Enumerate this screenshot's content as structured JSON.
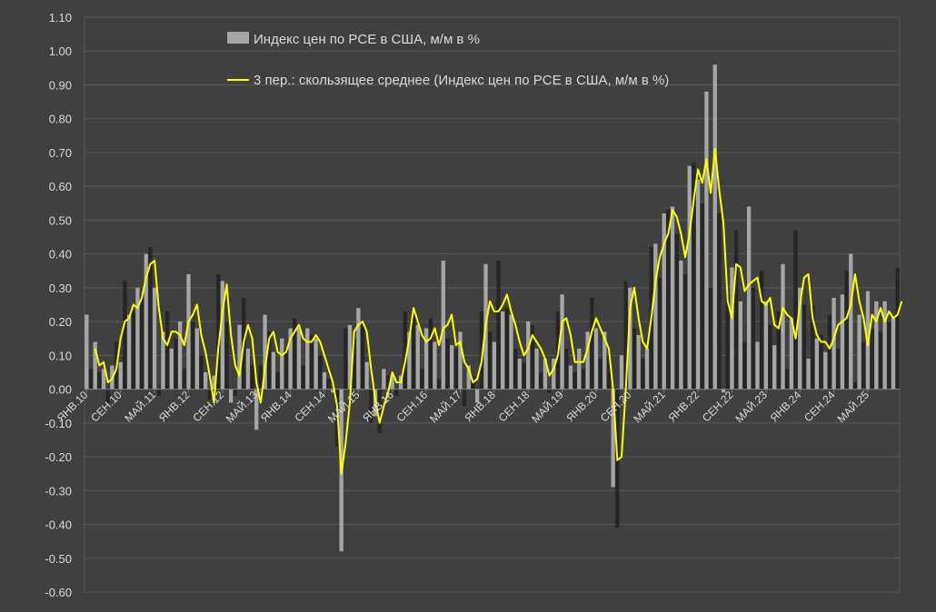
{
  "chart_data": {
    "type": "bar",
    "title": "",
    "xlabel": "",
    "ylabel": "",
    "ylim": [
      -0.6,
      1.1
    ],
    "yticks": [
      -0.6,
      -0.5,
      -0.4,
      -0.3,
      -0.2,
      -0.1,
      0,
      0.1,
      0.2,
      0.3,
      0.4,
      0.5,
      0.6,
      0.7,
      0.8,
      0.9,
      1.0,
      1.1
    ],
    "ytick_labels": [
      "-0.60",
      "-0.50",
      "-0.40",
      "-0.30",
      "-0.20",
      "-0.10",
      "0.00",
      "0.10",
      "0.20",
      "0.30",
      "0.40",
      "0.50",
      "0.60",
      "0.70",
      "0.80",
      "0.90",
      "1.00",
      "1.10"
    ],
    "xtick_labels": [
      "ЯНВ.10",
      "СЕН.10",
      "МАЙ.11",
      "ЯНВ.12",
      "СЕН.12",
      "МАЙ.13",
      "ЯНВ.14",
      "СЕН.14",
      "МАЙ.15",
      "ЯНВ.16",
      "СЕН.16",
      "МАЙ.17",
      "ЯНВ.18",
      "СЕН.18",
      "МАЙ.19",
      "ЯНВ.20",
      "СЕН.20",
      "МАЙ.21",
      "ЯНВ.22",
      "СЕН.22",
      "МАЙ.23",
      "ЯНВ.24",
      "СЕН.24",
      "МАЙ.25"
    ],
    "grid": true,
    "legend_position": "top-center",
    "colors": {
      "bars_light": "#a6a6a6",
      "bars_dark": "#262626",
      "line": "#ffff00",
      "grid": "#595959",
      "text": "#d9d9d9",
      "background": "#404040"
    },
    "series": [
      {
        "name": "Индекс цен по PCE в США, м/м в %",
        "type": "bar",
        "values": [
          0.22,
          0.06,
          0.14,
          0.05,
          0.06,
          -0.04,
          0.07,
          0.14,
          0.08,
          0.32,
          0.22,
          0.23,
          0.3,
          0.28,
          0.4,
          0.42,
          0.3,
          -0.02,
          0.17,
          0.23,
          0.12,
          0.15,
          0.2,
          0.06,
          0.34,
          0.2,
          0.18,
          0.1,
          0.05,
          -0.03,
          0.04,
          0.34,
          0.32,
          0.2,
          -0.04,
          -0.02,
          0.19,
          0.27,
          0.12,
          0.07,
          -0.12,
          0.07,
          0.22,
          0.17,
          0.11,
          0.05,
          0.15,
          0.12,
          0.18,
          0.21,
          0.18,
          0.07,
          0.18,
          0.16,
          0.15,
          0.1,
          0.05,
          0.03,
          -0.01,
          -0.17,
          -0.48,
          0.18,
          0.19,
          0.15,
          0.24,
          0.2,
          0.08,
          -0.1,
          -0.08,
          -0.13,
          0.06,
          0.04,
          0.04,
          -0.02,
          0.04,
          0.23,
          0.17,
          0.23,
          0.19,
          0.06,
          0.18,
          0.21,
          0.14,
          0.03,
          0.38,
          0.15,
          0.13,
          0.12,
          0.17,
          -0.05,
          0.07,
          0.04,
          -0.04,
          0.23,
          0.37,
          0.17,
          0.14,
          0.38,
          0.23,
          0.24,
          0.22,
          0.12,
          0.09,
          0.08,
          0.2,
          0.19,
          0.12,
          0.05,
          0.09,
          -0.01,
          0.09,
          0.23,
          0.28,
          0.12,
          0.07,
          0.05,
          0.12,
          0.06,
          0.17,
          0.27,
          0.18,
          0.09,
          0.17,
          0.1,
          -0.29,
          -0.41,
          0.1,
          0.32,
          0.3,
          0.18,
          0.16,
          0.09,
          0.12,
          0.42,
          0.43,
          0.33,
          0.52,
          0.53,
          0.54,
          0.46,
          0.38,
          0.34,
          0.66,
          0.67,
          0.62,
          0.55,
          0.88,
          0.3,
          0.96,
          0.52,
          -0.01,
          0.28,
          0.36,
          0.47,
          0.26,
          0.14,
          0.54,
          0.3,
          0.14,
          0.35,
          0.26,
          0.19,
          0.13,
          0.23,
          0.37,
          0.06,
          0.21,
          0.47,
          0.3,
          0.25,
          0.09,
          0.25,
          0.15,
          0.16,
          0.11,
          0.22,
          0.27,
          0.12,
          0.28,
          0.35,
          0.4,
          0.02,
          0.22,
          0.14,
          0.29,
          0.18,
          0.26,
          0.17,
          0.26,
          0.2,
          0.21,
          0.36
        ]
      },
      {
        "name": "3 пер.: скользящее среднее (Индекс цен по PCE в США, м/м в %)",
        "type": "line",
        "values": [
          null,
          null,
          0.12,
          0.07,
          0.08,
          0.02,
          0.03,
          0.06,
          0.15,
          0.2,
          0.21,
          0.25,
          0.24,
          0.27,
          0.33,
          0.37,
          0.38,
          0.24,
          0.15,
          0.13,
          0.17,
          0.17,
          0.16,
          0.13,
          0.2,
          0.22,
          0.25,
          0.16,
          0.11,
          0.04,
          -0.04,
          0.12,
          0.23,
          0.31,
          0.16,
          0.07,
          0.04,
          0.14,
          0.19,
          0.15,
          0.02,
          -0.04,
          0.06,
          0.15,
          0.17,
          0.11,
          0.1,
          0.11,
          0.15,
          0.17,
          0.19,
          0.15,
          0.14,
          0.14,
          0.16,
          0.14,
          0.1,
          0.06,
          0.02,
          -0.05,
          -0.25,
          -0.16,
          -0.04,
          0.17,
          0.19,
          0.2,
          0.17,
          0.06,
          -0.03,
          -0.1,
          -0.05,
          -0.01,
          0.05,
          0.02,
          0.02,
          0.08,
          0.15,
          0.24,
          0.2,
          0.16,
          0.14,
          0.15,
          0.18,
          0.13,
          0.18,
          0.19,
          0.22,
          0.13,
          0.14,
          0.08,
          0.06,
          0.02,
          0.03,
          0.08,
          0.19,
          0.26,
          0.23,
          0.23,
          0.25,
          0.28,
          0.23,
          0.19,
          0.14,
          0.1,
          0.12,
          0.16,
          0.14,
          0.12,
          0.09,
          0.04,
          0.06,
          0.1,
          0.2,
          0.21,
          0.16,
          0.08,
          0.08,
          0.08,
          0.12,
          0.17,
          0.21,
          0.18,
          0.15,
          0.12,
          0.0,
          -0.21,
          -0.2,
          0.0,
          0.24,
          0.3,
          0.21,
          0.14,
          0.12,
          0.21,
          0.32,
          0.39,
          0.43,
          0.46,
          0.53,
          0.51,
          0.46,
          0.39,
          0.46,
          0.56,
          0.65,
          0.61,
          0.68,
          0.58,
          0.71,
          0.59,
          0.49,
          0.26,
          0.21,
          0.37,
          0.36,
          0.29,
          0.31,
          0.32,
          0.33,
          0.26,
          0.25,
          0.27,
          0.19,
          0.18,
          0.24,
          0.22,
          0.21,
          0.15,
          0.25,
          0.33,
          0.34,
          0.21,
          0.16,
          0.14,
          0.14,
          0.12,
          0.15,
          0.19,
          0.2,
          0.21,
          0.25,
          0.34,
          0.26,
          0.21,
          0.13,
          0.22,
          0.2,
          0.24,
          0.2,
          0.23,
          0.21,
          0.22,
          0.26
        ]
      }
    ]
  }
}
